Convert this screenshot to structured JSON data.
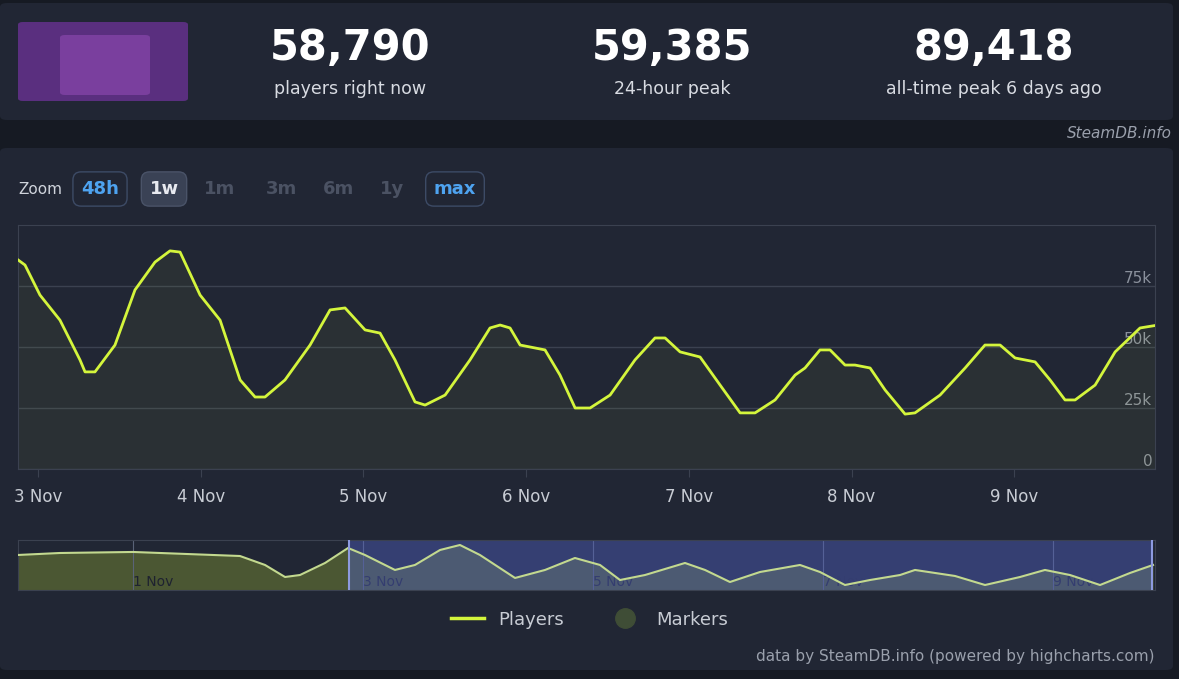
{
  "header": {
    "source": "SteamDB.info",
    "stats": [
      {
        "value": "58,790",
        "label": "players right now"
      },
      {
        "value": "59,385",
        "label": "24-hour peak"
      },
      {
        "value": "89,418",
        "label": "all-time peak 6 days ago"
      }
    ]
  },
  "zoom": {
    "label": "Zoom",
    "buttons": [
      "48h",
      "1w",
      "1m",
      "3m",
      "6m",
      "1y",
      "max"
    ],
    "active": "1w",
    "enabled": [
      "48h",
      "1w",
      "max"
    ]
  },
  "chart_data": [
    {
      "type": "line",
      "series": [
        {
          "name": "Players",
          "color": "#d4f53c",
          "x": [
            2.877,
            2.92,
            3.012,
            3.135,
            3.258,
            3.289,
            3.35,
            3.473,
            3.596,
            3.719,
            3.811,
            3.873,
            3.996,
            4.119,
            4.242,
            4.334,
            4.395,
            4.518,
            4.672,
            4.795,
            4.887,
            5.01,
            5.102,
            5.194,
            5.317,
            5.379,
            5.502,
            5.655,
            5.778,
            5.84,
            5.901,
            5.963,
            6.116,
            6.208,
            6.301,
            6.393,
            6.516,
            6.669,
            6.792,
            6.854,
            6.946,
            7.069,
            7.192,
            7.315,
            7.407,
            7.53,
            7.653,
            7.714,
            7.806,
            7.868,
            7.96,
            8.021,
            8.114,
            8.206,
            8.329,
            8.39,
            8.544,
            8.698,
            8.82,
            8.913,
            9.005,
            9.128,
            9.22,
            9.312,
            9.374,
            9.497,
            9.62,
            9.773,
            9.865
          ],
          "values": [
            85700,
            83600,
            71300,
            61000,
            44700,
            39800,
            39800,
            50800,
            73400,
            84800,
            89400,
            88900,
            71300,
            61000,
            36500,
            29500,
            29500,
            36500,
            50800,
            65200,
            66000,
            57000,
            55700,
            44700,
            27500,
            26200,
            30300,
            44700,
            57800,
            59000,
            57800,
            50800,
            48800,
            38500,
            25000,
            25000,
            30300,
            44700,
            53700,
            53700,
            48000,
            45900,
            34400,
            23000,
            23000,
            28300,
            38500,
            41400,
            48800,
            48800,
            42600,
            42600,
            41400,
            32400,
            22500,
            23000,
            30300,
            41400,
            50800,
            50800,
            45500,
            43900,
            36500,
            28300,
            28300,
            34400,
            48000,
            57800,
            58800
          ]
        },
        {
          "name": "Markers",
          "color": "#3f4d36",
          "type": "scatter",
          "marker": "o",
          "x": [],
          "values": []
        }
      ],
      "xlim": [
        2.877,
        9.865
      ],
      "xticks": [
        {
          "value": 3,
          "label": "3 Nov"
        },
        {
          "value": 4,
          "label": "4 Nov"
        },
        {
          "value": 5,
          "label": "5 Nov"
        },
        {
          "value": 6,
          "label": "6 Nov"
        },
        {
          "value": 7,
          "label": "7 Nov"
        },
        {
          "value": 8,
          "label": "8 Nov"
        },
        {
          "value": 9,
          "label": "9 Nov"
        }
      ],
      "ylim": [
        0,
        100000
      ],
      "yticks": [
        0,
        {
          "value": 25000,
          "label": "25k"
        },
        {
          "value": 50000,
          "label": "50k"
        },
        {
          "value": 75000,
          "label": "75k"
        }
      ],
      "grid": "y",
      "legend": "lower center"
    },
    {
      "type": "area",
      "color": "#c3d98f",
      "x": [
        0.0,
        0.365,
        1.0,
        1.93,
        2.148,
        2.322,
        2.452,
        2.67,
        2.87,
        3.017,
        3.278,
        3.452,
        3.67,
        3.843,
        4.017,
        4.322,
        4.583,
        4.843,
        5.061,
        5.235,
        5.452,
        5.8,
        5.974,
        6.191,
        6.452,
        6.8,
        6.974,
        7.191,
        7.409,
        7.67,
        7.8,
        7.974,
        8.148,
        8.409,
        8.713,
        8.93,
        9.148,
        9.409,
        9.67,
        9.87
      ],
      "values": [
        72400,
        75700,
        77400,
        70700,
        55800,
        35800,
        39100,
        59100,
        84000,
        72400,
        47500,
        55800,
        80700,
        89000,
        72400,
        34200,
        47500,
        67400,
        55800,
        30800,
        39100,
        59100,
        47500,
        27500,
        44100,
        55800,
        44100,
        22500,
        30800,
        39100,
        47500,
        42500,
        37500,
        22500,
        35800,
        47500,
        39100,
        22500,
        42500,
        55800
      ],
      "xlim": [
        0.0,
        9.887
      ],
      "xticks": [
        {
          "value": 1,
          "label": "1 Nov"
        },
        {
          "value": 3,
          "label": "3 Nov"
        },
        {
          "value": 5,
          "label": "5 Nov"
        },
        {
          "value": 7,
          "label": "7 Nov"
        },
        {
          "value": 9,
          "label": "9 Nov"
        }
      ],
      "ylim": [
        14200,
        97300
      ],
      "tick_labels": "x"
    }
  ],
  "footer": "data by SteamDB.info (powered by highcharts.com)"
}
